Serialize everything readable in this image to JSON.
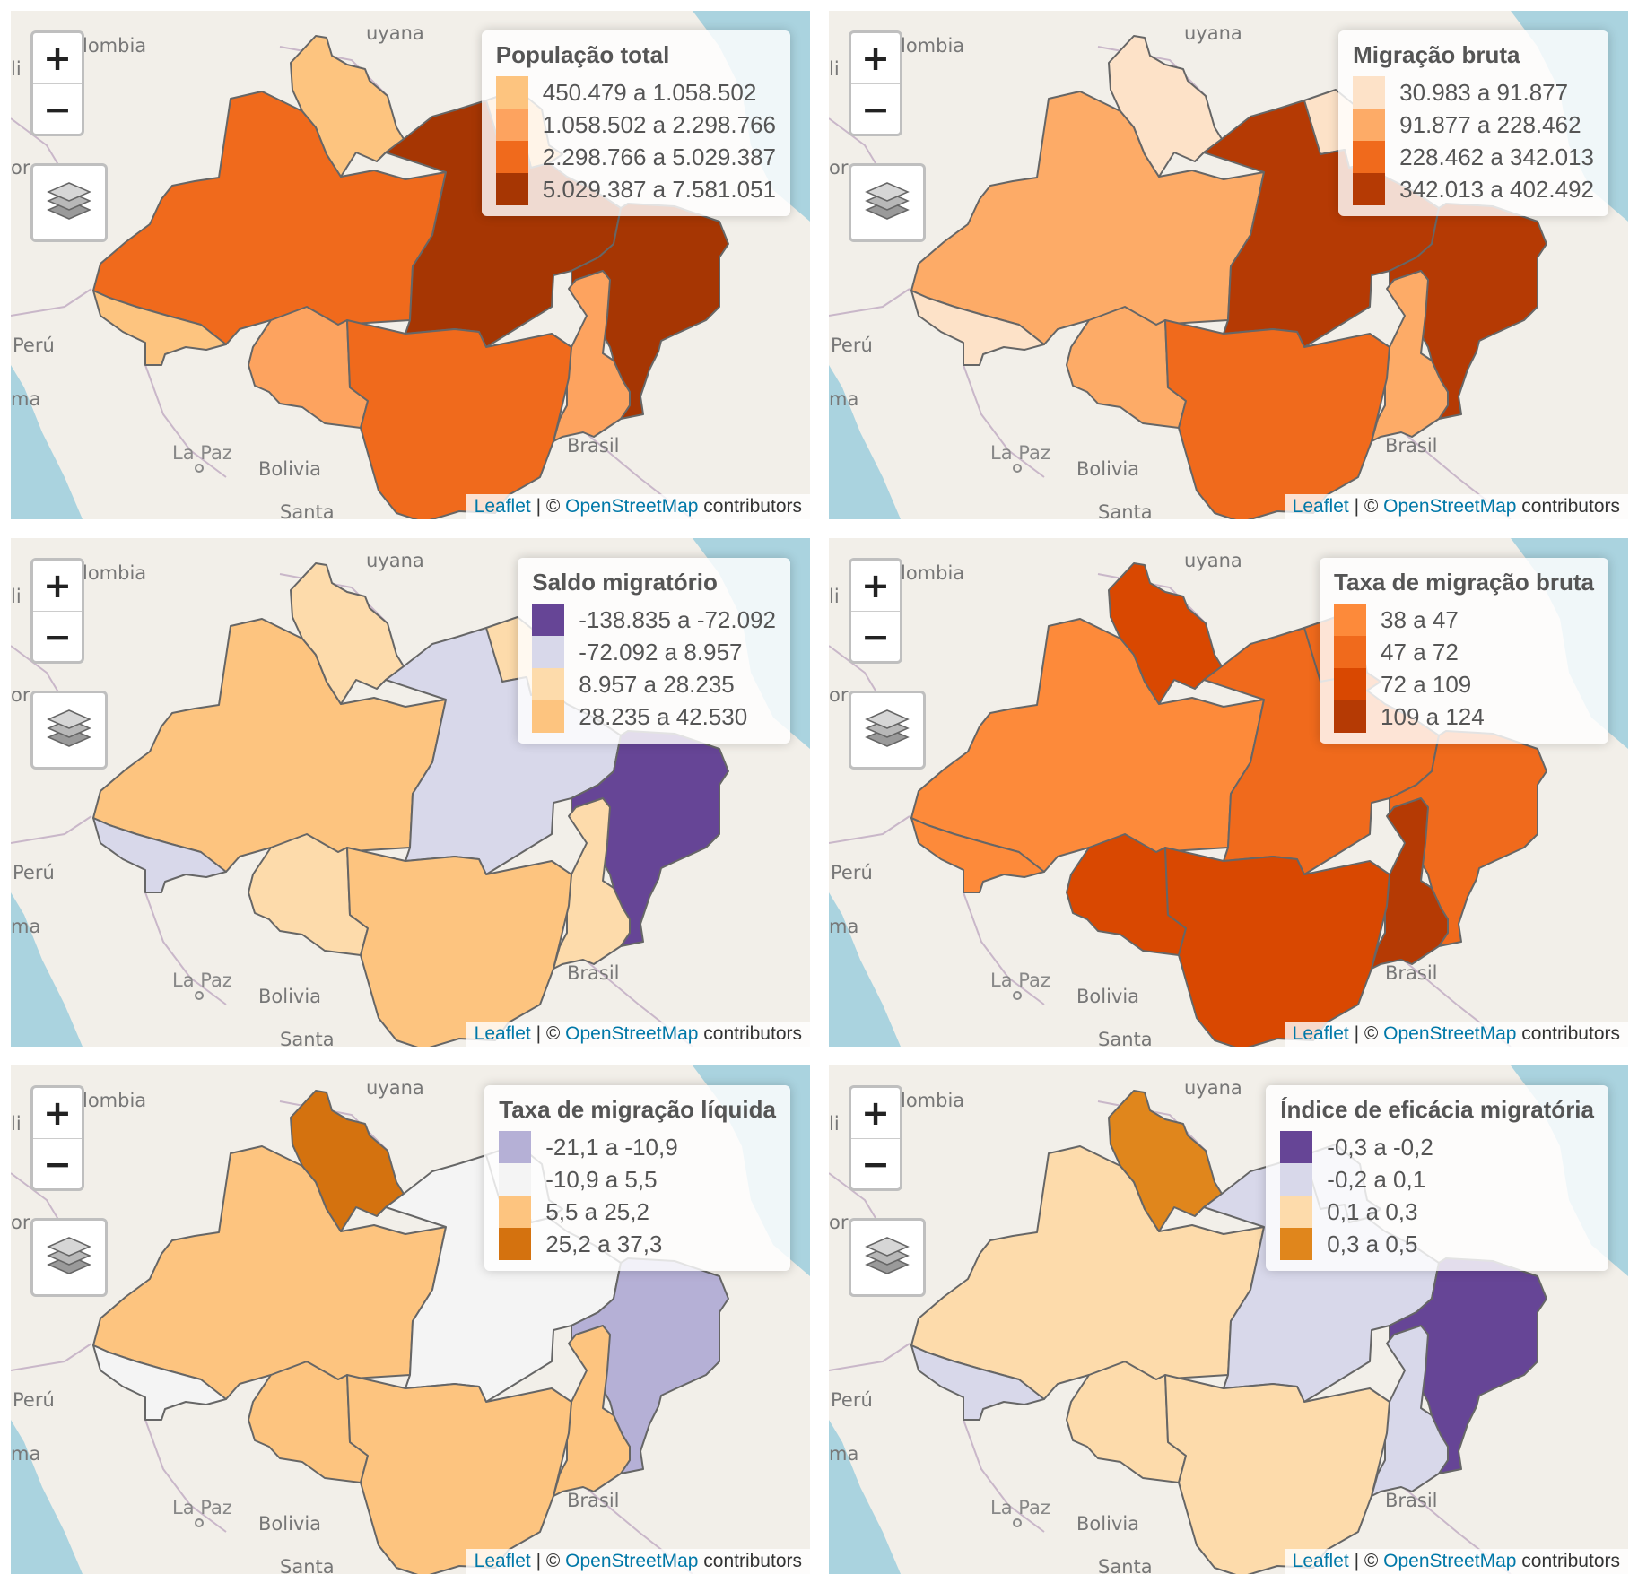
{
  "basemap_labels": {
    "colombia": "lombia",
    "guyana": "uyana",
    "peru": "Perú",
    "lima": "ma",
    "la_paz": "La Paz",
    "bolivia": "Bolivia",
    "brasil": "Brasil",
    "santa": "Santa",
    "li": "li",
    "or": "or"
  },
  "controls": {
    "zoom_in": "+",
    "zoom_out": "−"
  },
  "attribution": {
    "leaflet": "Leaflet",
    "sep": "| ©",
    "osm": "OpenStreetMap",
    "contrib": "contributors"
  },
  "colors": {
    "water": "#aad3df",
    "land": "#f2efe9",
    "border": "#666666"
  },
  "maps": [
    {
      "legend_title": "População total",
      "classes": [
        {
          "label": "450.479 a 1.058.502",
          "color": "#fdc47f"
        },
        {
          "label": "1.058.502 a 2.298.766",
          "color": "#fda35f"
        },
        {
          "label": "2.298.766 a 5.029.387",
          "color": "#f06a1c"
        },
        {
          "label": "5.029.387 a 7.581.051",
          "color": "#a63603"
        }
      ],
      "region_class": {
        "AC": 0,
        "RR": 0,
        "AP": 0,
        "AM": 2,
        "PA": 3,
        "MA": 3,
        "RO": 1,
        "MT": 2,
        "TO": 1
      }
    },
    {
      "legend_title": "Migração bruta",
      "classes": [
        {
          "label": "30.983 a 91.877",
          "color": "#fde2c8"
        },
        {
          "label": "91.877 a 228.462",
          "color": "#fdab67"
        },
        {
          "label": "228.462 a 342.013",
          "color": "#f06a1c"
        },
        {
          "label": "342.013 a 402.492",
          "color": "#b53a04"
        }
      ],
      "region_class": {
        "AC": 0,
        "RR": 0,
        "AP": 0,
        "AM": 1,
        "PA": 3,
        "MA": 3,
        "RO": 1,
        "MT": 2,
        "TO": 1
      }
    },
    {
      "legend_title": "Saldo migratório",
      "classes": [
        {
          "label": "-138.835 a -72.092",
          "color": "#664596"
        },
        {
          "label": "-72.092 a 8.957",
          "color": "#d8d8ea"
        },
        {
          "label": "8.957 a 28.235",
          "color": "#fddbab"
        },
        {
          "label": "28.235 a 42.530",
          "color": "#fdc47f"
        }
      ],
      "region_class": {
        "AC": 1,
        "RR": 2,
        "AP": 2,
        "AM": 3,
        "PA": 1,
        "MA": 0,
        "RO": 2,
        "MT": 3,
        "TO": 2
      }
    },
    {
      "legend_title": "Taxa de migração bruta",
      "classes": [
        {
          "label": "38 a 47",
          "color": "#fd8a3a"
        },
        {
          "label": "47 a 72",
          "color": "#f06a1c"
        },
        {
          "label": "72 a 109",
          "color": "#d94801"
        },
        {
          "label": "109 a 124",
          "color": "#b53a04"
        }
      ],
      "region_class": {
        "AC": 0,
        "RR": 2,
        "AP": 1,
        "AM": 0,
        "PA": 1,
        "MA": 1,
        "RO": 2,
        "MT": 2,
        "TO": 3
      }
    },
    {
      "legend_title": "Taxa de migração líquida",
      "classes": [
        {
          "label": "-21,1 a -10,9",
          "color": "#b5b0d6"
        },
        {
          "label": "-10,9 a 5,5",
          "color": "#f4f4f4"
        },
        {
          "label": "5,5 a 25,2",
          "color": "#fdc47f"
        },
        {
          "label": "25,2 a 37,3",
          "color": "#d4720f"
        }
      ],
      "region_class": {
        "AC": 1,
        "RR": 3,
        "AP": 1,
        "AM": 2,
        "PA": 1,
        "MA": 0,
        "RO": 2,
        "MT": 2,
        "TO": 2
      }
    },
    {
      "legend_title": "Índice de eficácia migratória",
      "classes": [
        {
          "label": "-0,3 a -0,2",
          "color": "#664596"
        },
        {
          "label": "-0,2 a 0,1",
          "color": "#d8d8ea"
        },
        {
          "label": "0,1 a 0,3",
          "color": "#fddbab"
        },
        {
          "label": "0,3 a 0,5",
          "color": "#e0861c"
        }
      ],
      "region_class": {
        "AC": 1,
        "RR": 3,
        "AP": 1,
        "AM": 2,
        "PA": 1,
        "MA": 0,
        "RO": 2,
        "MT": 2,
        "TO": 1
      }
    }
  ]
}
